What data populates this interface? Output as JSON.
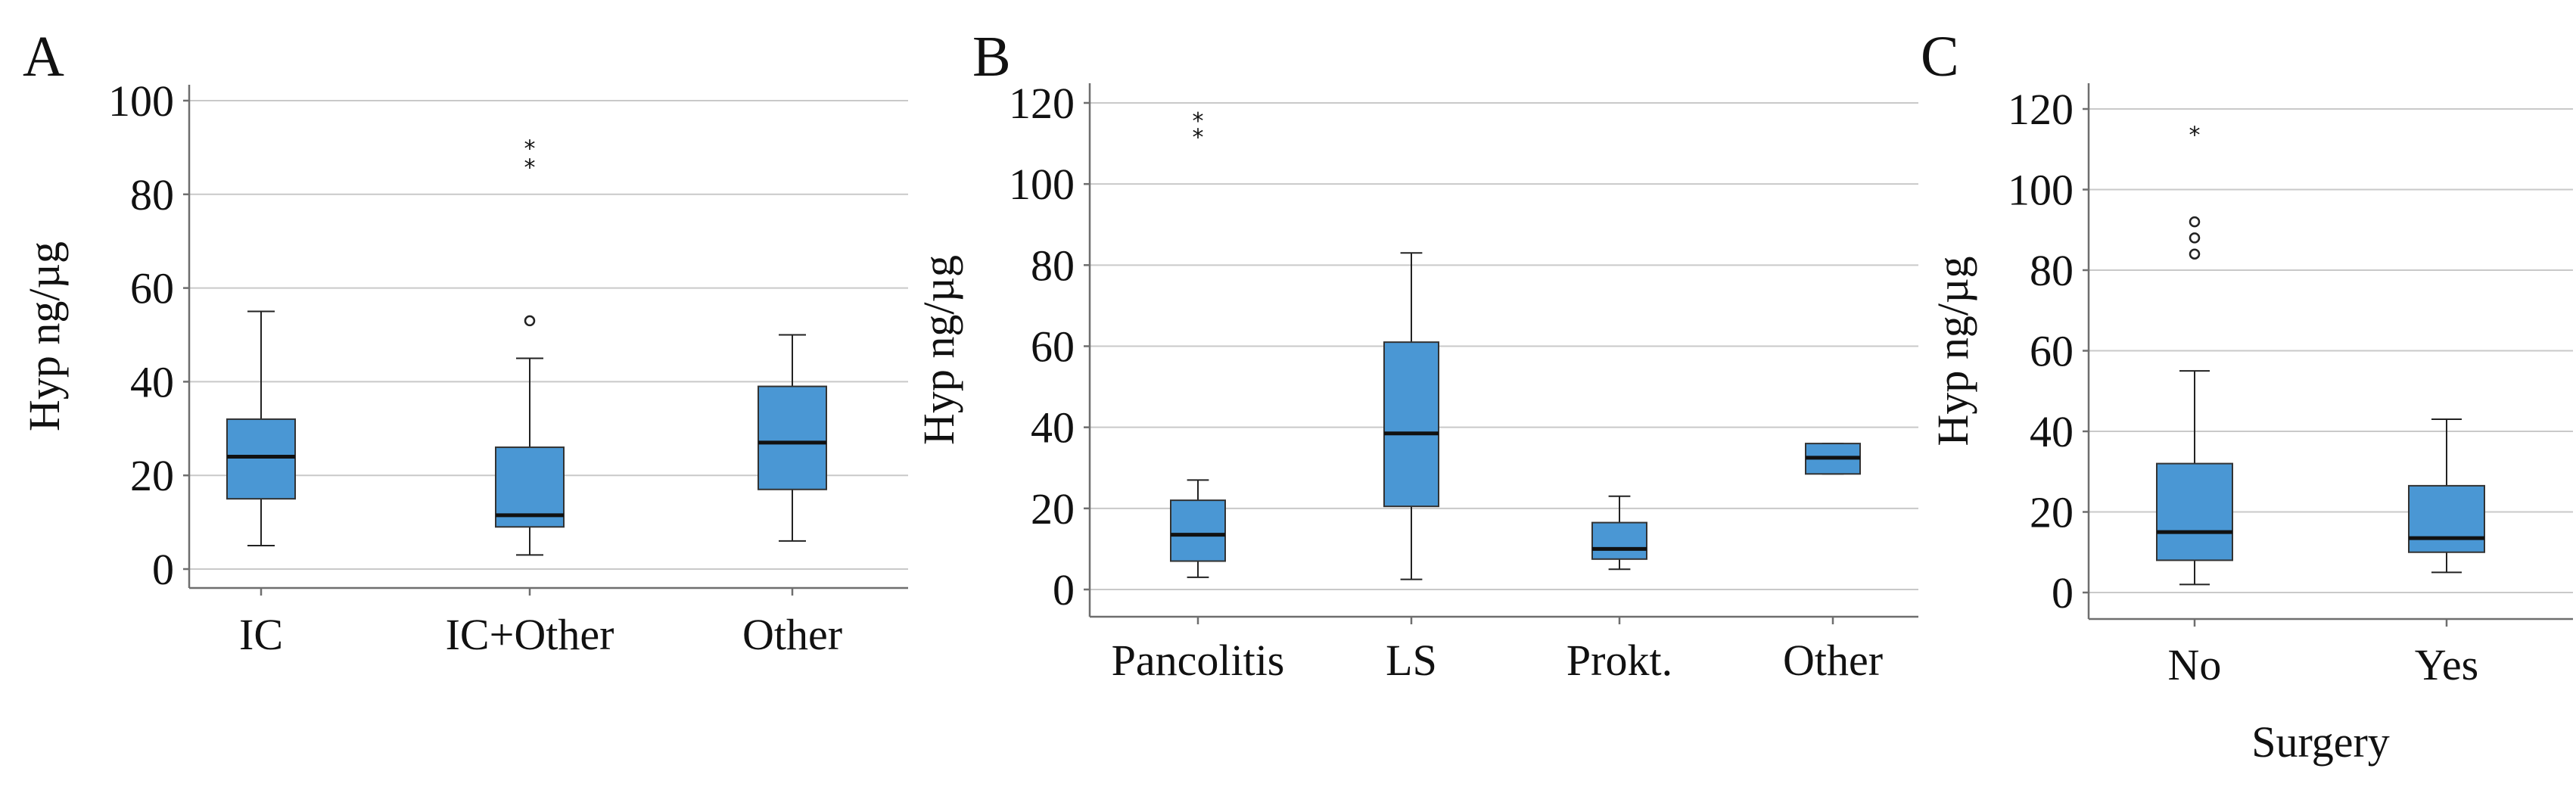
{
  "colors": {
    "box": "#4a97d4",
    "background": "#ffffff"
  },
  "chart_data": [
    {
      "panel": "A",
      "type": "box",
      "ylabel": "Hyp ng/µg",
      "xlabel": "",
      "ylim": [
        0,
        100
      ],
      "yticks": [
        0,
        20,
        40,
        60,
        80,
        100
      ],
      "gridlines": [
        0,
        20,
        40,
        60,
        80,
        100
      ],
      "categories": [
        "IC",
        "IC+Other",
        "Other"
      ],
      "boxes": [
        {
          "min": 5,
          "q1": 15,
          "median": 24,
          "q3": 32,
          "max": 55,
          "outliers": [],
          "extremes": []
        },
        {
          "min": 3,
          "q1": 9,
          "median": 11.5,
          "q3": 26,
          "max": 45,
          "outliers": [
            53
          ],
          "extremes": [
            87,
            91
          ]
        },
        {
          "min": 6,
          "q1": 17,
          "median": 27,
          "q3": 39,
          "max": 50,
          "outliers": [],
          "extremes": []
        }
      ]
    },
    {
      "panel": "B",
      "type": "box",
      "ylabel": "Hyp ng/µg",
      "xlabel": "",
      "ylim": [
        0,
        120
      ],
      "yticks": [
        0,
        20,
        40,
        60,
        80,
        100,
        120
      ],
      "gridlines": [
        0,
        20,
        40,
        60,
        80,
        100,
        120
      ],
      "categories": [
        "Pancolitis",
        "LS",
        "Prokt.",
        "Other"
      ],
      "boxes": [
        {
          "min": 3,
          "q1": 7,
          "median": 13.5,
          "q3": 22,
          "max": 27,
          "outliers": [],
          "extremes": [
            113,
            117
          ]
        },
        {
          "min": 2.5,
          "q1": 20.5,
          "median": 38.5,
          "q3": 61,
          "max": 83,
          "outliers": [],
          "extremes": []
        },
        {
          "min": 5,
          "q1": 7.5,
          "median": 10,
          "q3": 16.5,
          "max": 23,
          "outliers": [],
          "extremes": []
        },
        {
          "min": 28.5,
          "q1": 28.5,
          "median": 32.5,
          "q3": 36,
          "max": 36,
          "outliers": [],
          "extremes": []
        }
      ]
    },
    {
      "panel": "C",
      "type": "box",
      "ylabel": "Hyp ng/µg",
      "xlabel": "Surgery",
      "ylim": [
        0,
        120
      ],
      "yticks": [
        0,
        20,
        40,
        60,
        80,
        100,
        120
      ],
      "gridlines": [
        0,
        20,
        40,
        60,
        80,
        100,
        120
      ],
      "categories": [
        "No",
        "Yes"
      ],
      "boxes": [
        {
          "min": 2,
          "q1": 8,
          "median": 15,
          "q3": 32,
          "max": 55,
          "outliers": [
            84,
            88,
            92
          ],
          "extremes": [
            115
          ]
        },
        {
          "min": 5,
          "q1": 10,
          "median": 13.5,
          "q3": 26.5,
          "max": 43,
          "outliers": [],
          "extremes": []
        }
      ]
    }
  ]
}
